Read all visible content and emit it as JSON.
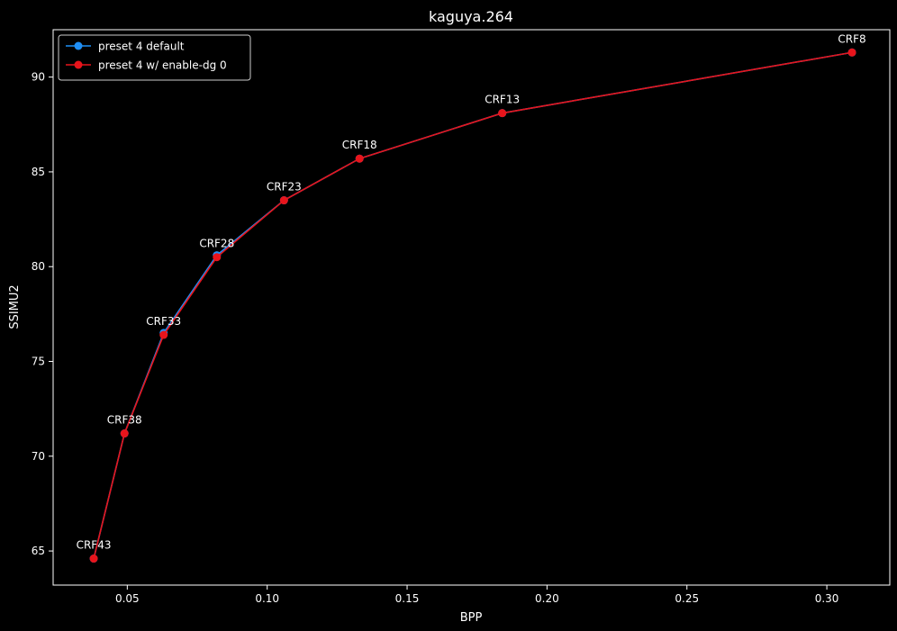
{
  "chart_data": {
    "type": "line",
    "title": "kaguya.264",
    "xlabel": "BPP",
    "ylabel": "SSIMU2",
    "xlim": [
      0.0235,
      0.3225
    ],
    "ylim": [
      63.2,
      92.5
    ],
    "xticks": [
      0.05,
      0.1,
      0.15,
      0.2,
      0.25,
      0.3
    ],
    "xtick_labels": [
      "0.05",
      "0.10",
      "0.15",
      "0.20",
      "0.25",
      "0.30"
    ],
    "yticks": [
      65,
      70,
      75,
      80,
      85,
      90
    ],
    "ytick_labels": [
      "65",
      "70",
      "75",
      "80",
      "85",
      "90"
    ],
    "grid": false,
    "legend_position": "top-left",
    "series": [
      {
        "name": "preset 4 default",
        "color": "#1f8ff5",
        "x": [
          0.038,
          0.049,
          0.063,
          0.082,
          0.106,
          0.133,
          0.184,
          0.309
        ],
        "y": [
          64.6,
          71.2,
          76.5,
          80.6,
          83.5,
          85.7,
          88.1,
          91.3
        ]
      },
      {
        "name": "preset 4 w/ enable-dg 0",
        "color": "#e8141b",
        "x": [
          0.038,
          0.049,
          0.063,
          0.082,
          0.106,
          0.133,
          0.184,
          0.309
        ],
        "y": [
          64.6,
          71.2,
          76.4,
          80.5,
          83.5,
          85.7,
          88.1,
          91.3
        ]
      }
    ],
    "annotations": [
      "CRF43",
      "CRF38",
      "CRF33",
      "CRF28",
      "CRF23",
      "CRF18",
      "CRF13",
      "CRF8"
    ]
  },
  "colors": {
    "background": "#000000",
    "foreground": "#ffffff"
  }
}
